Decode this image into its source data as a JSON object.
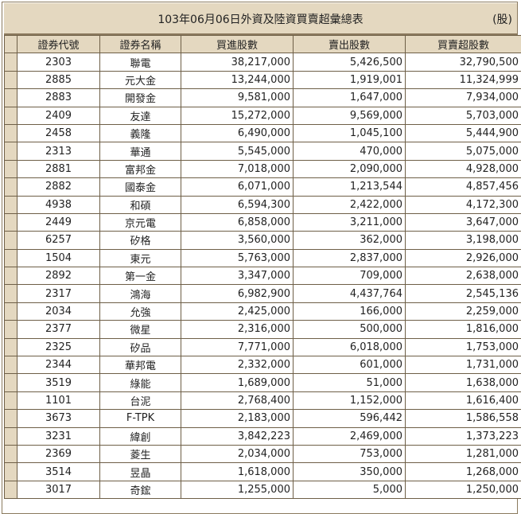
{
  "title": "103年06月06日外資及陸資買賣超彙總表",
  "unit": "(股)",
  "columns": [
    "證券代號",
    "證券名稱",
    "買進股數",
    "賣出股數",
    "買賣超股數"
  ],
  "rows": [
    [
      "2303",
      "聯電",
      "38,217,000",
      "5,426,500",
      "32,790,500"
    ],
    [
      "2885",
      "元大金",
      "13,244,000",
      "1,919,001",
      "11,324,999"
    ],
    [
      "2883",
      "開發金",
      "9,581,000",
      "1,647,000",
      "7,934,000"
    ],
    [
      "2409",
      "友達",
      "15,272,000",
      "9,569,000",
      "5,703,000"
    ],
    [
      "2458",
      "義隆",
      "6,490,000",
      "1,045,100",
      "5,444,900"
    ],
    [
      "2313",
      "華通",
      "5,545,000",
      "470,000",
      "5,075,000"
    ],
    [
      "2881",
      "富邦金",
      "7,018,000",
      "2,090,000",
      "4,928,000"
    ],
    [
      "2882",
      "國泰金",
      "6,071,000",
      "1,213,544",
      "4,857,456"
    ],
    [
      "4938",
      "和碩",
      "6,594,300",
      "2,422,000",
      "4,172,300"
    ],
    [
      "2449",
      "京元電",
      "6,858,000",
      "3,211,000",
      "3,647,000"
    ],
    [
      "6257",
      "矽格",
      "3,560,000",
      "362,000",
      "3,198,000"
    ],
    [
      "1504",
      "東元",
      "5,763,000",
      "2,837,000",
      "2,926,000"
    ],
    [
      "2892",
      "第一金",
      "3,347,000",
      "709,000",
      "2,638,000"
    ],
    [
      "2317",
      "鴻海",
      "6,982,900",
      "4,437,764",
      "2,545,136"
    ],
    [
      "2034",
      "允強",
      "2,425,000",
      "166,000",
      "2,259,000"
    ],
    [
      "2377",
      "微星",
      "2,316,000",
      "500,000",
      "1,816,000"
    ],
    [
      "2325",
      "矽品",
      "7,771,000",
      "6,018,000",
      "1,753,000"
    ],
    [
      "2344",
      "華邦電",
      "2,332,000",
      "601,000",
      "1,731,000"
    ],
    [
      "3519",
      "綠能",
      "1,689,000",
      "51,000",
      "1,638,000"
    ],
    [
      "1101",
      "台泥",
      "2,768,400",
      "1,152,000",
      "1,616,400"
    ],
    [
      "3673",
      "F-TPK",
      "2,183,000",
      "596,442",
      "1,586,558"
    ],
    [
      "3231",
      "緯創",
      "3,842,223",
      "2,469,000",
      "1,373,223"
    ],
    [
      "2369",
      "菱生",
      "2,034,000",
      "753,000",
      "1,281,000"
    ],
    [
      "3514",
      "昱晶",
      "1,618,000",
      "350,000",
      "1,268,000"
    ],
    [
      "3017",
      "奇鋐",
      "1,255,000",
      "5,000",
      "1,250,000"
    ]
  ]
}
